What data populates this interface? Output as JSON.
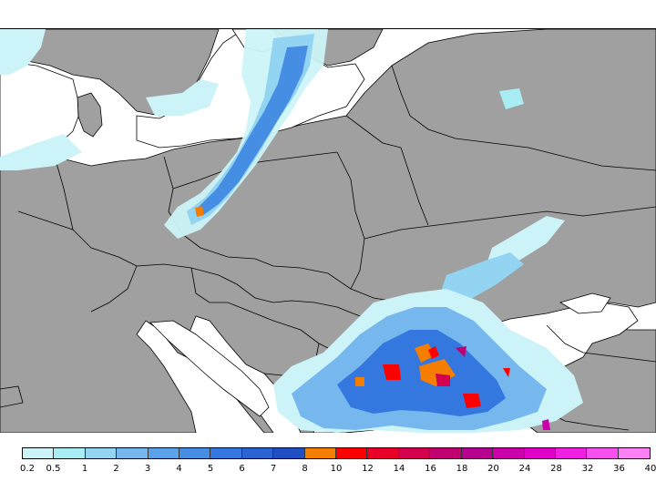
{
  "map": {
    "land_color": "#a0a0a0",
    "water_color": "#ffffff",
    "border_color": "#000000"
  },
  "legend": {
    "colors": [
      "#ccf4f8",
      "#a8ecf4",
      "#92d4f2",
      "#76b8ee",
      "#5aa2ea",
      "#468de4",
      "#3477de",
      "#2a64d2",
      "#1f4fc2",
      "#f57d00",
      "#ff0000",
      "#e80028",
      "#d2004e",
      "#c00070",
      "#b60090",
      "#cc00aa",
      "#e000c8",
      "#f020e0",
      "#f850ec",
      "#ff80f4"
    ],
    "labels": [
      "0.2",
      "0.5",
      "1",
      "2",
      "3",
      "4",
      "5",
      "6",
      "7",
      "8",
      "10",
      "12",
      "14",
      "16",
      "18",
      "20",
      "24",
      "28",
      "32",
      "36",
      "40"
    ]
  }
}
